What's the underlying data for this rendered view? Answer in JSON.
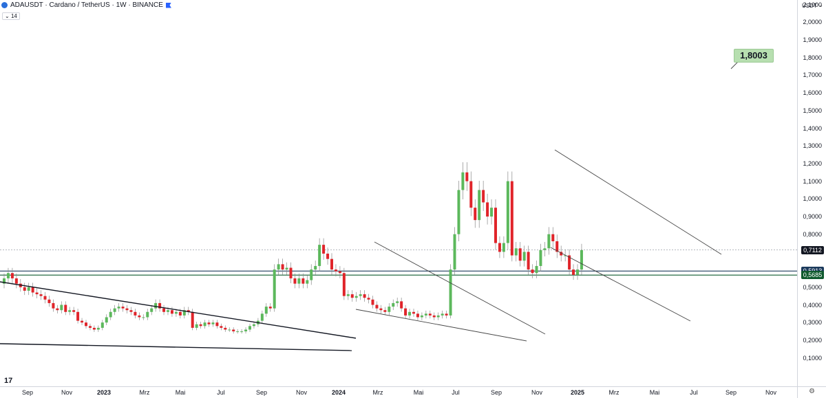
{
  "legend": {
    "title": "ADAUSDT · Cardano / TetherUS · 1W · BINANCE",
    "indicator_badge": "14"
  },
  "price_axis": {
    "currency": "USDT",
    "ticks": [
      "2,1000",
      "2,0000",
      "1,9000",
      "1,8000",
      "1,7000",
      "1,6000",
      "1,5000",
      "1,4000",
      "1,3000",
      "1,2000",
      "1,1000",
      "1,0000",
      "0,9000",
      "0,8000",
      "0,7000",
      "0,6000",
      "0,5000",
      "0,4000",
      "0,3000",
      "0,2000",
      "0,1000"
    ],
    "price_tags": [
      {
        "label": "0,7112",
        "color": "#131722",
        "value": 0.7112
      },
      {
        "label": "0,5913",
        "color": "#1b3a5c",
        "value": 0.5913
      },
      {
        "label": "0,5685",
        "color": "#0f5a2e",
        "value": 0.5685
      }
    ]
  },
  "time_axis": {
    "labels": [
      {
        "text": "Sep",
        "bold": false
      },
      {
        "text": "Nov",
        "bold": false
      },
      {
        "text": "2023",
        "bold": true
      },
      {
        "text": "Mrz",
        "bold": false
      },
      {
        "text": "Mai",
        "bold": false
      },
      {
        "text": "Jul",
        "bold": false
      },
      {
        "text": "Sep",
        "bold": false
      },
      {
        "text": "Nov",
        "bold": false
      },
      {
        "text": "2024",
        "bold": true
      },
      {
        "text": "Mrz",
        "bold": false
      },
      {
        "text": "Mai",
        "bold": false
      },
      {
        "text": "Jul",
        "bold": false
      },
      {
        "text": "Sep",
        "bold": false
      },
      {
        "text": "Nov",
        "bold": false
      },
      {
        "text": "2025",
        "bold": true
      },
      {
        "text": "Mrz",
        "bold": false
      },
      {
        "text": "Mai",
        "bold": false
      },
      {
        "text": "Jul",
        "bold": false
      },
      {
        "text": "Sep",
        "bold": false
      },
      {
        "text": "Nov",
        "bold": false
      }
    ]
  },
  "annotation": {
    "target_label": "1,8003"
  },
  "colors": {
    "up": "#5cb85c",
    "down": "#e0242a",
    "hline_blue": "#1b3a5c",
    "hline_green": "#0f5a2e"
  },
  "icons": {
    "logo": "tradingview-logo-icon",
    "settings": "settings-icon",
    "symbol": "cardano-logo-icon",
    "exchange": "exchange-flag-icon"
  }
}
